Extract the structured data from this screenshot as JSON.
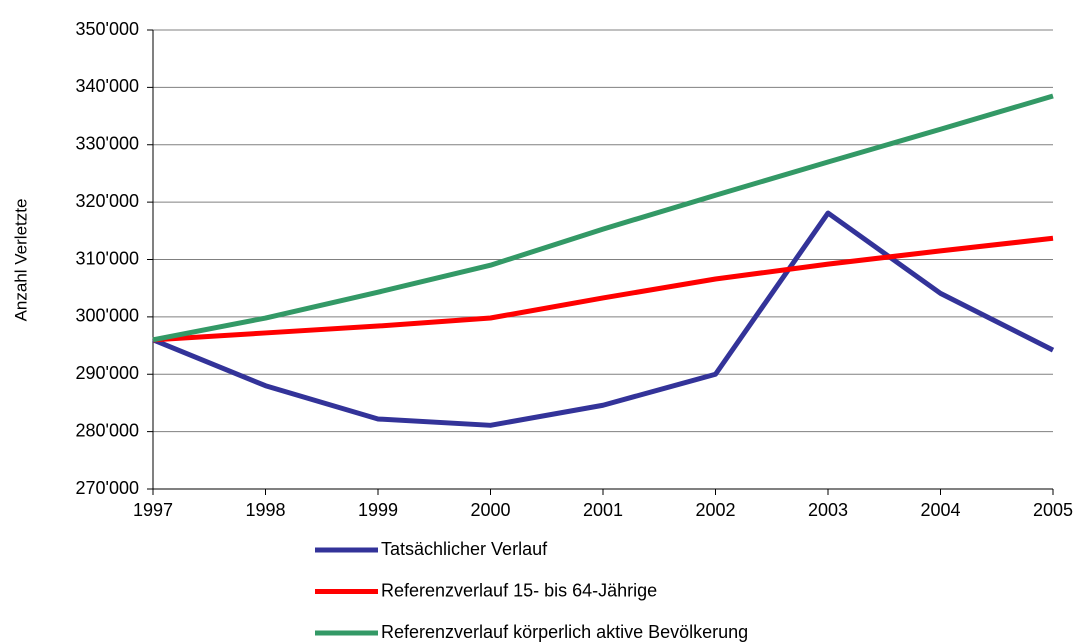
{
  "chart_data": {
    "type": "line",
    "y_label": "Anzahl Verletzte",
    "categories": [
      "1997",
      "1998",
      "1999",
      "2000",
      "2001",
      "2002",
      "2003",
      "2004",
      "2005"
    ],
    "series": [
      {
        "name": "Tatsächlicher Verlauf",
        "color": "#333399",
        "values": [
          296000,
          288000,
          282200,
          281100,
          284600,
          290000,
          318100,
          304100,
          294200
        ]
      },
      {
        "name": "Referenzverlauf 15- bis 64-Jährige",
        "color": "#ff0000",
        "values": [
          296000,
          297200,
          298400,
          299800,
          303300,
          306600,
          309200,
          311500,
          313700
        ]
      },
      {
        "name": "Referenzverlauf körperlich aktive Bevölkerung",
        "color": "#339966",
        "values": [
          296000,
          299800,
          304300,
          309000,
          315300,
          321200,
          327000,
          332700,
          338500
        ]
      }
    ],
    "ylim": [
      270000,
      350000
    ],
    "yticks": [
      {
        "value": 270000,
        "label": "270'000"
      },
      {
        "value": 280000,
        "label": "280'000"
      },
      {
        "value": 290000,
        "label": "290'000"
      },
      {
        "value": 300000,
        "label": "300'000"
      },
      {
        "value": 310000,
        "label": "310'000"
      },
      {
        "value": 320000,
        "label": "320'000"
      },
      {
        "value": 330000,
        "label": "330'000"
      },
      {
        "value": 340000,
        "label": "340'000"
      },
      {
        "value": 350000,
        "label": "350'000"
      }
    ],
    "grid": true
  }
}
